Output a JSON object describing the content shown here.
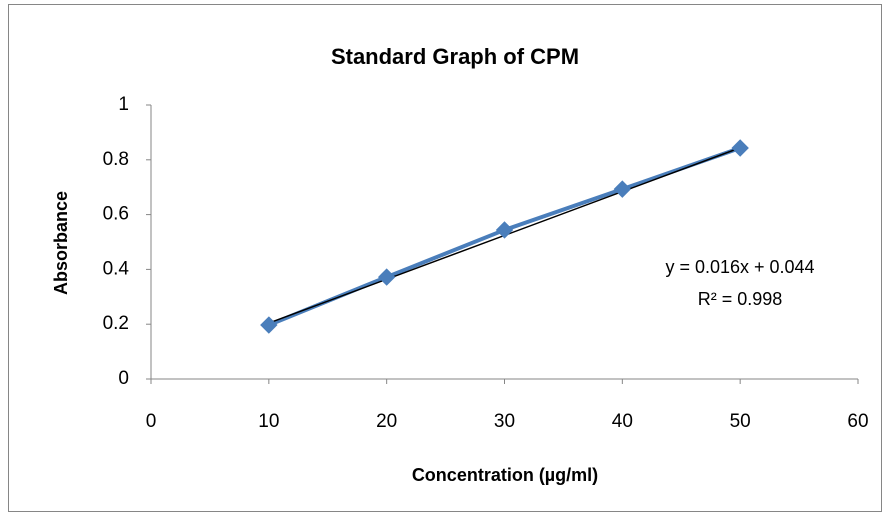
{
  "chart_data": {
    "type": "scatter",
    "title": "Standard Graph of CPM",
    "x_label": "Concentration (µg/ml)",
    "y_label": "Absorbance",
    "series": [
      {
        "name": "Absorbance",
        "color": "#4a7ebb",
        "x": [
          10,
          20,
          30,
          40,
          50
        ],
        "values": [
          0.197,
          0.372,
          0.544,
          0.693,
          0.843
        ]
      }
    ],
    "trendline": {
      "slope": 0.016,
      "intercept": 0.044,
      "equation": "y = 0.016x + 0.044",
      "r_squared": "R² = 0.998",
      "color": "#000000"
    },
    "xlim": [
      0,
      60
    ],
    "xticks": [
      0,
      10,
      20,
      30,
      40,
      50,
      60
    ],
    "ylim": [
      0,
      1
    ],
    "yticks": [
      0,
      0.2,
      0.4,
      0.6,
      0.8,
      1
    ],
    "grid": false,
    "legend": false
  }
}
